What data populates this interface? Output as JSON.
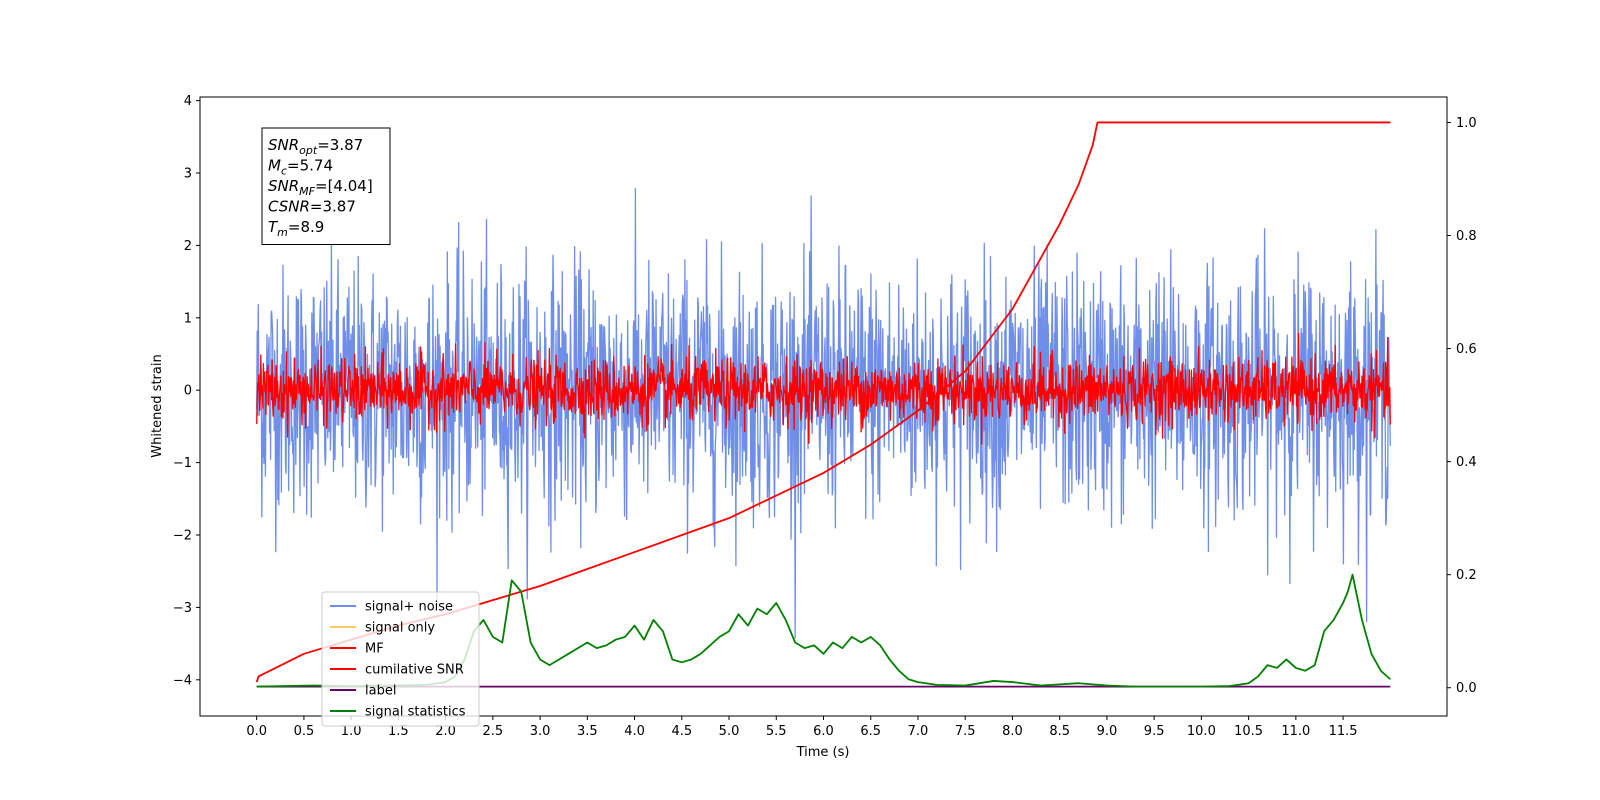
{
  "chart_data": {
    "type": "line",
    "xlabel": "Time (s)",
    "ylabel_left": "Whitened strain",
    "ylabel_right": "",
    "xlim": [
      -0.6,
      12.6
    ],
    "ylim_left": [
      -4.5,
      4.05
    ],
    "ylim_right": [
      -0.05,
      1.045
    ],
    "x_ticks": [
      0.0,
      0.5,
      1.0,
      1.5,
      2.0,
      2.5,
      3.0,
      3.5,
      4.0,
      4.5,
      5.0,
      5.5,
      6.0,
      6.5,
      7.0,
      7.5,
      8.0,
      8.5,
      9.0,
      9.5,
      10.0,
      10.5,
      11.0,
      11.5
    ],
    "x_tick_labels": [
      "0.0",
      "0.5",
      "1.0",
      "1.5",
      "2.0",
      "2.5",
      "3.0",
      "3.5",
      "4.0",
      "4.5",
      "5.0",
      "5.5",
      "6.0",
      "6.5",
      "7.0",
      "7.5",
      "8.0",
      "8.5",
      "9.0",
      "9.5",
      "10.0",
      "10.5",
      "11.0",
      "11.5"
    ],
    "y_ticks_left": [
      -4,
      -3,
      -2,
      -1,
      0,
      1,
      2,
      3,
      4
    ],
    "y_tick_labels_left": [
      "−4",
      "−3",
      "−2",
      "−1",
      "0",
      "1",
      "2",
      "3",
      "4"
    ],
    "y_ticks_right": [
      0.0,
      0.2,
      0.4,
      0.6,
      0.8,
      1.0
    ],
    "y_tick_labels_right": [
      "0.0",
      "0.2",
      "0.4",
      "0.6",
      "0.8",
      "1.0"
    ],
    "series": [
      {
        "name": "signal+ noise",
        "color": "#6f8ee8",
        "axis": "left",
        "style": "noise",
        "x_range": [
          0,
          12
        ],
        "amplitude": 0.85,
        "spike_max": 3.64
      },
      {
        "name": "signal only",
        "color": "#ffc966",
        "axis": "left",
        "style": "flat",
        "values": []
      },
      {
        "name": "MF",
        "color": "#ff0000",
        "axis": "left",
        "style": "noise",
        "x_range": [
          0,
          12
        ],
        "amplitude": 0.22,
        "spike_max": 1.0
      },
      {
        "name": "cumilative SNR",
        "color": "#ff0000",
        "axis": "right",
        "style": "line",
        "x": [
          0.0,
          0.02,
          0.5,
          1.0,
          1.5,
          2.0,
          2.5,
          3.0,
          3.5,
          4.0,
          4.5,
          5.0,
          5.5,
          6.0,
          6.5,
          7.0,
          7.5,
          8.0,
          8.5,
          8.7,
          8.85,
          8.9,
          12.0
        ],
        "y": [
          0.01,
          0.02,
          0.06,
          0.085,
          0.11,
          0.13,
          0.155,
          0.18,
          0.21,
          0.24,
          0.27,
          0.3,
          0.34,
          0.38,
          0.43,
          0.49,
          0.56,
          0.67,
          0.82,
          0.89,
          0.96,
          1.0,
          1.0
        ]
      },
      {
        "name": "label",
        "color": "#660066",
        "axis": "right",
        "style": "line",
        "x": [
          0.0,
          12.0
        ],
        "y": [
          0.002,
          0.002
        ]
      },
      {
        "name": "signal statistics",
        "color": "#008000",
        "axis": "right",
        "style": "line",
        "x": [
          0.0,
          0.3,
          0.6,
          1.0,
          1.4,
          1.8,
          2.0,
          2.1,
          2.2,
          2.3,
          2.4,
          2.5,
          2.6,
          2.7,
          2.8,
          2.9,
          3.0,
          3.1,
          3.2,
          3.3,
          3.4,
          3.5,
          3.6,
          3.7,
          3.8,
          3.9,
          4.0,
          4.1,
          4.2,
          4.3,
          4.4,
          4.5,
          4.6,
          4.7,
          4.8,
          4.9,
          5.0,
          5.1,
          5.2,
          5.3,
          5.4,
          5.5,
          5.6,
          5.7,
          5.8,
          5.9,
          6.0,
          6.1,
          6.2,
          6.3,
          6.4,
          6.5,
          6.6,
          6.7,
          6.8,
          6.9,
          7.0,
          7.2,
          7.5,
          7.8,
          8.0,
          8.3,
          8.5,
          8.7,
          9.0,
          9.3,
          9.6,
          10.0,
          10.3,
          10.5,
          10.6,
          10.7,
          10.8,
          10.9,
          11.0,
          11.1,
          11.2,
          11.3,
          11.4,
          11.5,
          11.55,
          11.6,
          11.7,
          11.8,
          11.9,
          12.0
        ],
        "y": [
          0.002,
          0.003,
          0.004,
          0.003,
          0.004,
          0.005,
          0.01,
          0.02,
          0.05,
          0.1,
          0.12,
          0.09,
          0.08,
          0.19,
          0.17,
          0.08,
          0.05,
          0.04,
          0.05,
          0.06,
          0.07,
          0.08,
          0.07,
          0.075,
          0.085,
          0.09,
          0.11,
          0.085,
          0.12,
          0.1,
          0.05,
          0.045,
          0.05,
          0.06,
          0.075,
          0.09,
          0.1,
          0.13,
          0.11,
          0.14,
          0.13,
          0.15,
          0.12,
          0.08,
          0.07,
          0.075,
          0.06,
          0.08,
          0.07,
          0.09,
          0.08,
          0.09,
          0.075,
          0.05,
          0.03,
          0.015,
          0.01,
          0.005,
          0.004,
          0.012,
          0.01,
          0.004,
          0.006,
          0.008,
          0.004,
          0.002,
          0.002,
          0.002,
          0.003,
          0.008,
          0.02,
          0.04,
          0.035,
          0.05,
          0.035,
          0.03,
          0.04,
          0.1,
          0.12,
          0.15,
          0.17,
          0.2,
          0.12,
          0.06,
          0.03,
          0.015
        ]
      }
    ],
    "legend_placement": "lower-left",
    "info_box_placement": "upper-left",
    "info_box": [
      {
        "var": "SNR",
        "sub": "opt",
        "value": "=3.87"
      },
      {
        "var": "M",
        "sub": "c",
        "value": "=5.74"
      },
      {
        "var": "SNR",
        "sub": "MF",
        "value": "=[4.04]"
      },
      {
        "var": "CSNR",
        "sub": "",
        "value": "=3.87"
      },
      {
        "var": "T",
        "sub": "m",
        "value": "=8.9"
      }
    ]
  }
}
